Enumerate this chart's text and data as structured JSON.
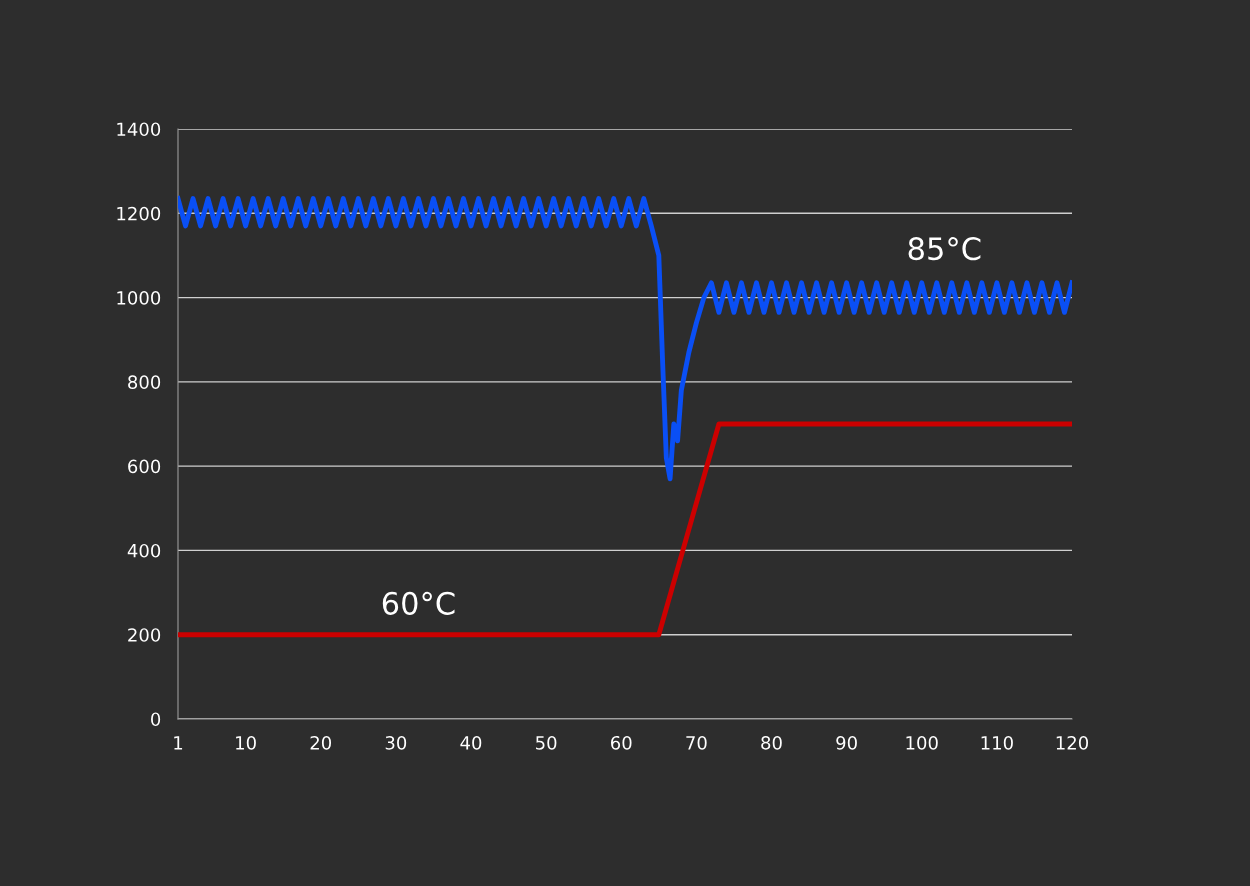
{
  "chart_data": {
    "type": "line",
    "xlim": [
      1,
      120
    ],
    "xticks": [
      1,
      10,
      20,
      30,
      40,
      50,
      60,
      70,
      80,
      90,
      100,
      110,
      120
    ],
    "ylim": [
      0,
      1400
    ],
    "yticks": [
      0,
      200,
      400,
      600,
      800,
      1000,
      1200,
      1400
    ],
    "grid": "y",
    "series": [
      {
        "name": "85°C",
        "color": "#0a4ff5",
        "x": [
          1,
          2,
          3,
          4,
          5,
          6,
          7,
          8,
          9,
          10,
          11,
          12,
          13,
          14,
          15,
          16,
          17,
          18,
          19,
          20,
          21,
          22,
          23,
          24,
          25,
          26,
          27,
          28,
          29,
          30,
          31,
          32,
          33,
          34,
          35,
          36,
          37,
          38,
          39,
          40,
          41,
          42,
          43,
          44,
          45,
          46,
          47,
          48,
          49,
          50,
          51,
          52,
          53,
          54,
          55,
          56,
          57,
          58,
          59,
          60,
          61,
          62,
          63,
          64,
          65,
          65.5,
          66,
          66.5,
          67,
          67.5,
          68,
          69,
          70,
          71,
          72,
          73,
          74,
          75,
          76,
          77,
          78,
          79,
          80,
          81,
          82,
          83,
          84,
          85,
          86,
          87,
          88,
          89,
          90,
          91,
          92,
          93,
          94,
          95,
          96,
          97,
          98,
          99,
          100,
          101,
          102,
          103,
          104,
          105,
          106,
          107,
          108,
          109,
          110,
          111,
          112,
          113,
          114,
          115,
          116,
          117,
          118,
          119,
          120
        ],
        "values": [
          1235,
          1170,
          1235,
          1170,
          1235,
          1170,
          1235,
          1170,
          1235,
          1170,
          1235,
          1170,
          1235,
          1170,
          1235,
          1170,
          1235,
          1170,
          1235,
          1170,
          1235,
          1170,
          1235,
          1170,
          1235,
          1170,
          1235,
          1170,
          1235,
          1170,
          1235,
          1170,
          1235,
          1170,
          1235,
          1170,
          1235,
          1170,
          1235,
          1170,
          1235,
          1170,
          1235,
          1170,
          1235,
          1170,
          1235,
          1170,
          1235,
          1170,
          1235,
          1170,
          1235,
          1170,
          1235,
          1170,
          1235,
          1170,
          1235,
          1170,
          1235,
          1170,
          1235,
          1170,
          1100,
          850,
          620,
          570,
          700,
          660,
          780,
          870,
          940,
          1000,
          1035,
          965,
          1035,
          965,
          1035,
          965,
          1035,
          965,
          1035,
          965,
          1035,
          965,
          1035,
          965,
          1035,
          965,
          1035,
          965,
          1035,
          965,
          1035,
          965,
          1035,
          965,
          1035,
          965,
          1035,
          965,
          1035,
          965,
          1035,
          965,
          1035,
          965,
          1035,
          965,
          1035,
          965,
          1035,
          965,
          1035,
          965,
          1035,
          965,
          1035,
          965,
          1035,
          965,
          1035
        ]
      },
      {
        "name": "60°C",
        "color": "#cc0000",
        "x": [
          1,
          65,
          73,
          120
        ],
        "values": [
          200,
          200,
          700,
          700
        ]
      }
    ]
  }
}
